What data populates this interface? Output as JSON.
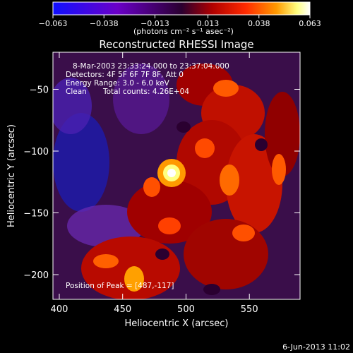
{
  "colorbar": {
    "ticks": [
      -0.063,
      -0.038,
      -0.013,
      0.013,
      0.038,
      0.063
    ],
    "tick_labels": [
      "−0.063",
      "−0.038",
      "−0.013",
      "0.013",
      "0.038",
      "0.063"
    ],
    "units": "(photons cm⁻² s⁻¹ asec⁻²)",
    "colors": [
      "#1010ff",
      "#6a00c8",
      "#3a0040",
      "#b00000",
      "#ff2a00",
      "#ff9a00",
      "#ffff80",
      "#ffffff"
    ]
  },
  "chart_data": {
    "type": "heatmap",
    "title": "Reconstructed RHESSI Image",
    "xlabel": "Heliocentric X (arcsec)",
    "ylabel": "Heliocentric Y (arcsec)",
    "xlim": [
      395,
      590
    ],
    "ylim": [
      -220,
      -20
    ],
    "xticks": [
      400,
      450,
      500,
      550
    ],
    "yticks": [
      -50,
      -100,
      -150,
      -200
    ],
    "xtick_labels": [
      "400",
      "450",
      "500",
      "550"
    ],
    "ytick_labels": [
      "−50",
      "−100",
      "−150",
      "−200"
    ],
    "peak": {
      "x": 487,
      "y": -117
    },
    "annotations": [
      "8-Mar-2003 23:33:24.000 to 23:37:04.000",
      "Detectors: 4F 5F 6F 7F 8F, Att 0",
      "Energy Range: 3.0 - 6.0 keV",
      "Clean",
      "Total counts: 4.26E+04",
      "Position of Peak = [487,-117]"
    ]
  },
  "footer": {
    "date": "6-Jun-2013 11:02"
  }
}
